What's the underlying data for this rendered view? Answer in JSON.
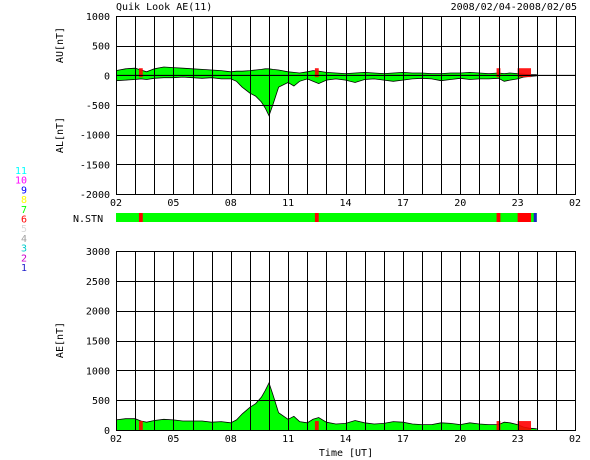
{
  "header": {
    "title": "Quik Look AE(11)",
    "date_range": "2008/02/04-2008/02/05"
  },
  "colors": {
    "fill_green": "#00ff00",
    "storm_red": "#ff0000",
    "border": "#000000"
  },
  "station_legend": [
    {
      "label": "11",
      "color": "#00ffff"
    },
    {
      "label": "10",
      "color": "#ff00ff"
    },
    {
      "label": "9",
      "color": "#0000ff"
    },
    {
      "label": "8",
      "color": "#ffff00"
    },
    {
      "label": "7",
      "color": "#00ff00"
    },
    {
      "label": "6",
      "color": "#ff0000"
    },
    {
      "label": "5",
      "color": "#d8d8d8"
    },
    {
      "label": "4",
      "color": "#a0a0a0"
    },
    {
      "label": "3",
      "color": "#00cccc"
    },
    {
      "label": "2",
      "color": "#cc00cc"
    },
    {
      "label": "1",
      "color": "#2020cc"
    }
  ],
  "x_tick_labels": [
    "02",
    "05",
    "08",
    "11",
    "14",
    "17",
    "20",
    "23",
    "02"
  ],
  "top_panel": {
    "upper_label": "AU[nT]",
    "lower_label": "AL[nT]",
    "y_ticks": [
      1000,
      500,
      0,
      -500,
      -1000,
      -1500,
      -2000
    ]
  },
  "nstn_label": "N.STN",
  "bottom_panel": {
    "ylabel": "AE[nT]",
    "y_ticks": [
      3000,
      2500,
      2000,
      1500,
      1000,
      500,
      0
    ]
  },
  "xlabel": "Time [UT]",
  "chart_data": [
    {
      "type": "area",
      "xlabel": "",
      "ylabel": "AU[nT] / AL[nT]",
      "xlim": [
        2,
        26
      ],
      "ylim": [
        -2000,
        1000
      ],
      "grid": true,
      "x": [
        2,
        2.5,
        3,
        3.3,
        3.6,
        4,
        4.5,
        5,
        5.5,
        6,
        6.5,
        7,
        7.5,
        8,
        8.3,
        8.6,
        9,
        9.3,
        9.6,
        9.8,
        10,
        10.2,
        10.5,
        11,
        11.3,
        11.6,
        12,
        12.3,
        12.6,
        13,
        13.5,
        14,
        14.5,
        15,
        15.5,
        16,
        16.5,
        17,
        17.5,
        18,
        18.5,
        19,
        19.5,
        20,
        20.5,
        21,
        21.5,
        22,
        22.3,
        22.6,
        23,
        23.3,
        23.6,
        24
      ],
      "series": [
        {
          "name": "AU",
          "values": [
            80,
            110,
            120,
            90,
            60,
            110,
            140,
            130,
            120,
            110,
            100,
            90,
            80,
            60,
            70,
            70,
            80,
            90,
            100,
            110,
            110,
            100,
            90,
            60,
            50,
            40,
            60,
            80,
            70,
            50,
            40,
            30,
            40,
            50,
            40,
            30,
            40,
            50,
            40,
            40,
            30,
            30,
            40,
            40,
            50,
            40,
            30,
            40,
            30,
            40,
            30,
            20,
            10,
            10
          ]
        },
        {
          "name": "AL",
          "values": [
            -90,
            -80,
            -70,
            -60,
            -70,
            -50,
            -40,
            -40,
            -30,
            -40,
            -50,
            -40,
            -60,
            -60,
            -100,
            -200,
            -300,
            -350,
            -450,
            -550,
            -680,
            -500,
            -200,
            -120,
            -180,
            -100,
            -60,
            -100,
            -140,
            -80,
            -60,
            -80,
            -120,
            -70,
            -60,
            -80,
            -100,
            -80,
            -60,
            -50,
            -60,
            -90,
            -70,
            -50,
            -70,
            -60,
            -60,
            -50,
            -100,
            -80,
            -60,
            -30,
            -20,
            -10
          ]
        }
      ]
    },
    {
      "type": "area",
      "xlabel": "Time [UT]",
      "ylabel": "AE[nT]",
      "xlim": [
        2,
        26
      ],
      "ylim": [
        0,
        3000
      ],
      "grid": true,
      "x": [
        2,
        2.5,
        3,
        3.3,
        3.6,
        4,
        4.5,
        5,
        5.5,
        6,
        6.5,
        7,
        7.5,
        8,
        8.3,
        8.6,
        9,
        9.3,
        9.6,
        9.8,
        10,
        10.2,
        10.5,
        11,
        11.3,
        11.6,
        12,
        12.3,
        12.6,
        13,
        13.5,
        14,
        14.5,
        15,
        15.5,
        16,
        16.5,
        17,
        17.5,
        18,
        18.5,
        19,
        19.5,
        20,
        20.5,
        21,
        21.5,
        22,
        22.3,
        22.6,
        23,
        23.3,
        23.6,
        24
      ],
      "series": [
        {
          "name": "AE",
          "values": [
            170,
            190,
            190,
            150,
            130,
            160,
            180,
            170,
            150,
            150,
            150,
            130,
            140,
            120,
            170,
            270,
            380,
            440,
            550,
            660,
            790,
            600,
            290,
            180,
            230,
            140,
            120,
            180,
            210,
            130,
            100,
            110,
            160,
            120,
            100,
            110,
            140,
            130,
            100,
            90,
            90,
            120,
            110,
            90,
            120,
            100,
            90,
            90,
            130,
            120,
            90,
            50,
            30,
            20
          ]
        }
      ]
    }
  ],
  "red_bands": [
    [
      3.2,
      3.4
    ],
    [
      12.4,
      12.6
    ],
    [
      21.9,
      22.1
    ],
    [
      23.0,
      23.7
    ]
  ]
}
